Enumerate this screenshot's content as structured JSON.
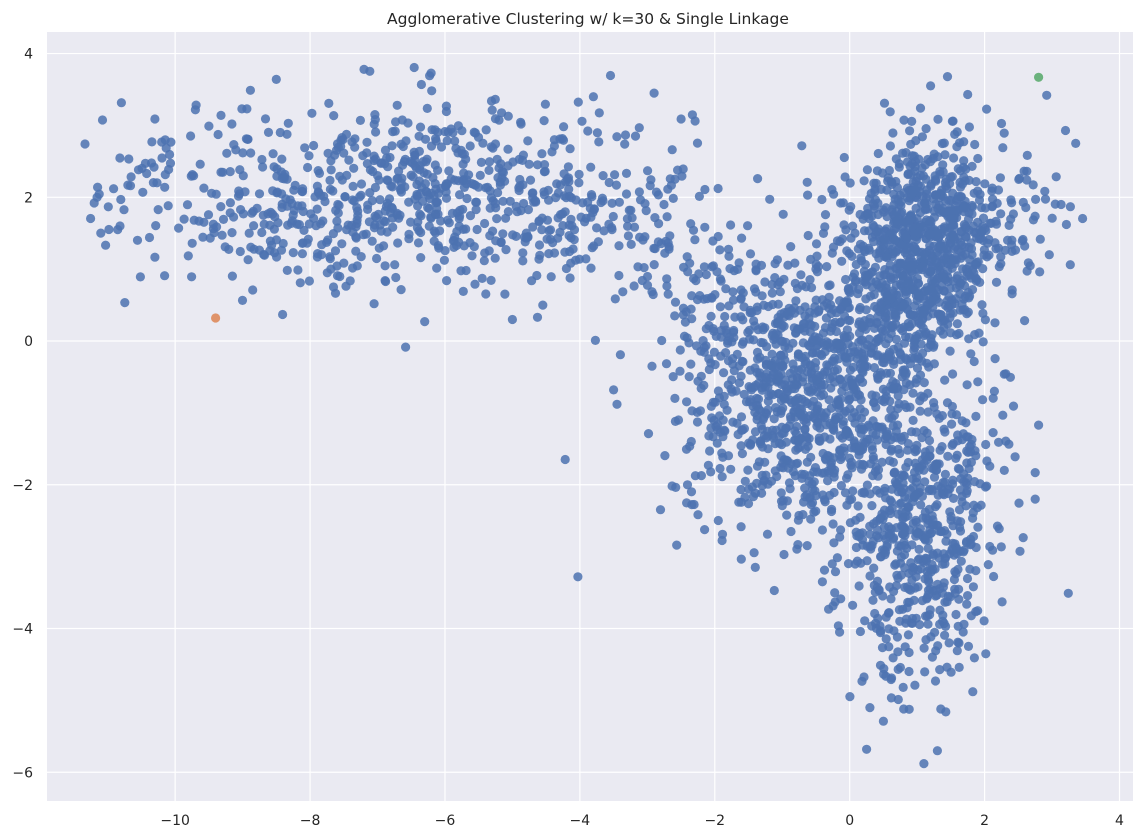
{
  "chart_data": {
    "type": "scatter",
    "title": "Agglomerative Clustering w/ k=30 & Single Linkage",
    "xlabel": "",
    "ylabel": "",
    "xlim": [
      -11.9,
      4.2
    ],
    "ylim": [
      -6.4,
      4.3
    ],
    "x_ticks": [
      -10,
      -8,
      -6,
      -4,
      -2,
      0,
      2,
      4
    ],
    "y_ticks": [
      -6,
      -4,
      -2,
      0,
      2,
      4
    ],
    "x_tick_labels": [
      "−10",
      "−8",
      "−6",
      "−4",
      "−2",
      "0",
      "2",
      "4"
    ],
    "y_tick_labels": [
      "−6",
      "−4",
      "−2",
      "0",
      "2",
      "4"
    ],
    "grid": true,
    "legend": "none",
    "colors": {
      "background": "#eaeaf2",
      "grid": "#ffffff",
      "text": "#262626"
    },
    "series": [
      {
        "color": "#4c72b0",
        "regions": [
          {
            "cx": -6.2,
            "cy": 2.05,
            "sx": 1.9,
            "sy": 0.65,
            "n": 700
          },
          {
            "cx": -9.2,
            "cy": 1.9,
            "sx": 1.0,
            "sy": 0.55,
            "n": 90
          },
          {
            "cx": -3.0,
            "cy": 1.55,
            "sx": 0.8,
            "sy": 0.55,
            "n": 70
          },
          {
            "cx": -0.7,
            "cy": -0.9,
            "sx": 0.85,
            "sy": 0.85,
            "n": 750
          },
          {
            "cx": 1.0,
            "cy": 1.1,
            "sx": 0.6,
            "sy": 0.7,
            "n": 650
          },
          {
            "cx": 1.5,
            "cy": 1.9,
            "sx": 0.75,
            "sy": 0.55,
            "n": 250
          },
          {
            "cx": 1.0,
            "cy": -2.3,
            "sx": 0.6,
            "sy": 0.9,
            "n": 500
          },
          {
            "cx": 1.0,
            "cy": -3.9,
            "sx": 0.45,
            "sy": 0.6,
            "n": 110
          },
          {
            "cx": -1.5,
            "cy": 0.4,
            "sx": 0.6,
            "sy": 0.45,
            "n": 130
          },
          {
            "cx": 0.4,
            "cy": 0.0,
            "sx": 0.5,
            "sy": 0.5,
            "n": 150
          }
        ],
        "points": [
          [
            -11.2,
            1.92
          ],
          [
            -11.15,
            2.14
          ],
          [
            -10.7,
            2.17
          ],
          [
            -10.3,
            3.09
          ],
          [
            -10.2,
            2.77
          ],
          [
            -8.5,
            3.64
          ],
          [
            -7.2,
            3.78
          ],
          [
            -6.35,
            3.57
          ],
          [
            -9.5,
            2.99
          ],
          [
            -2.9,
            3.45
          ],
          [
            -3.8,
            3.4
          ],
          [
            -2.5,
            3.09
          ],
          [
            -10.38,
            1.44
          ],
          [
            -7.05,
            0.52
          ],
          [
            -6.3,
            0.27
          ],
          [
            -5.0,
            0.3
          ],
          [
            -4.55,
            0.5
          ],
          [
            -8.85,
            0.71
          ],
          [
            -3.5,
            -0.68
          ],
          [
            -3.45,
            -0.88
          ],
          [
            -3.4,
            -0.19
          ],
          [
            0.6,
            3.19
          ],
          [
            1.2,
            3.55
          ],
          [
            1.45,
            3.68
          ],
          [
            1.75,
            3.43
          ],
          [
            3.2,
            2.93
          ],
          [
            3.35,
            2.75
          ],
          [
            2.8,
            -1.17
          ],
          [
            2.75,
            -1.83
          ],
          [
            2.75,
            -2.2
          ],
          [
            0.25,
            -5.68
          ],
          [
            0.8,
            -5.12
          ],
          [
            1.35,
            -5.12
          ],
          [
            1.1,
            -5.88
          ],
          [
            1.3,
            -5.7
          ],
          [
            0.5,
            -5.29
          ],
          [
            0.3,
            -5.1
          ],
          [
            -0.15,
            -4.05
          ],
          [
            -1.4,
            -3.15
          ]
        ]
      },
      {
        "color": "#dd8452",
        "points": [
          [
            -9.4,
            0.32
          ]
        ]
      },
      {
        "color": "#55a868",
        "points": [
          [
            2.8,
            3.67
          ]
        ]
      }
    ]
  }
}
